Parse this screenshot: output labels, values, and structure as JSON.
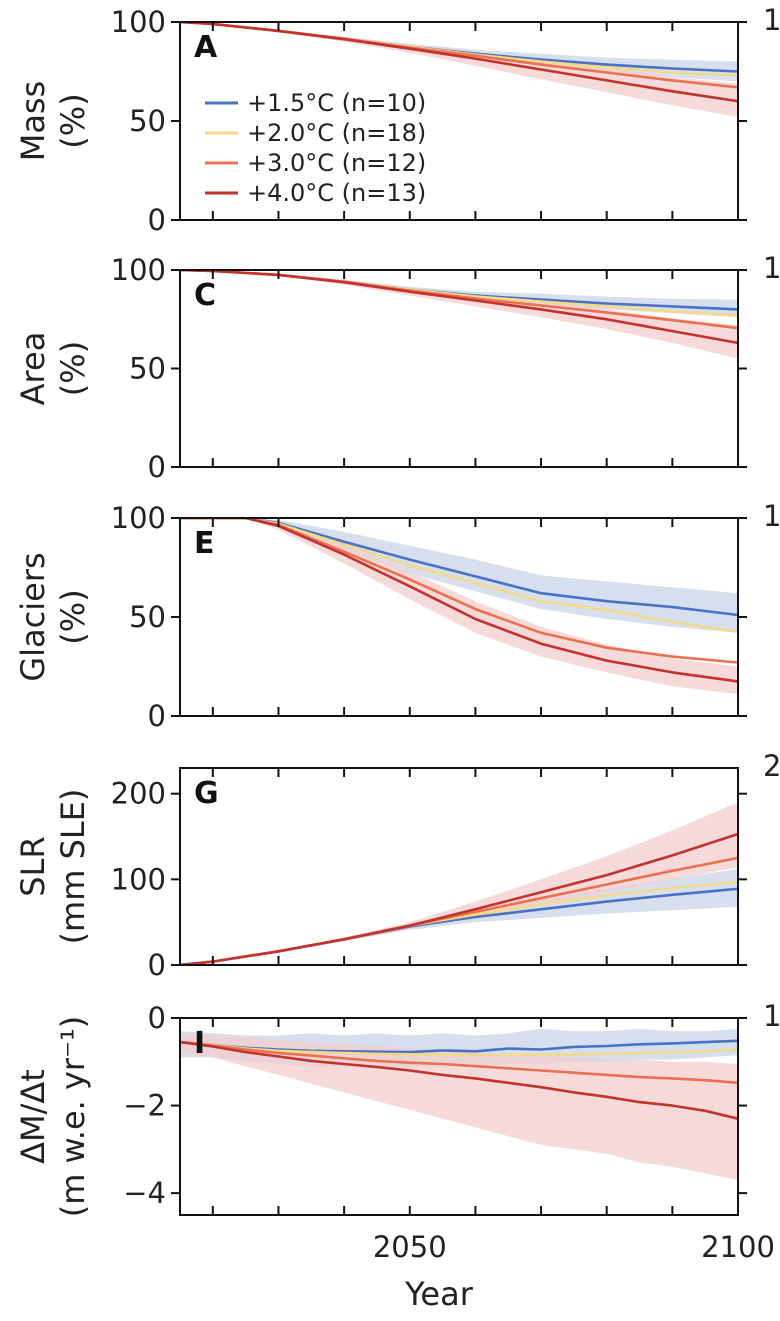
{
  "chart_data": [
    {
      "panel": "A",
      "type": "line",
      "ylabel_lines": [
        "Mass",
        "(%)"
      ],
      "xlim": [
        2015,
        2100
      ],
      "ylim": [
        0,
        100
      ],
      "yticks": [
        0,
        50,
        100
      ],
      "x": [
        2015,
        2020,
        2030,
        2040,
        2050,
        2060,
        2070,
        2080,
        2090,
        2100
      ],
      "series": [
        {
          "name": "+1.5°C (n=10)",
          "values": [
            100,
            99,
            95.5,
            91.5,
            87.5,
            84,
            81,
            78.5,
            76.5,
            75
          ],
          "band": [
            [
              100,
              100
            ],
            [
              99,
              99
            ],
            [
              96,
              95
            ],
            [
              92.5,
              90.5
            ],
            [
              89,
              86
            ],
            [
              86,
              82
            ],
            [
              84,
              78
            ],
            [
              82,
              75
            ],
            [
              81,
              72
            ],
            [
              80,
              70
            ]
          ]
        },
        {
          "name": "+2.0°C (n=18)",
          "values": [
            100,
            99,
            95.5,
            91.5,
            87.5,
            83.5,
            80,
            77,
            74.5,
            73
          ]
        },
        {
          "name": "+3.0°C (n=12)",
          "values": [
            100,
            99,
            95.5,
            91.5,
            87,
            83,
            78.5,
            74.5,
            70.5,
            67
          ]
        },
        {
          "name": "+4.0°C (n=13)",
          "values": [
            100,
            99,
            95.5,
            91.3,
            86.5,
            81.5,
            76,
            70.5,
            65,
            60
          ],
          "band": [
            [
              100,
              100
            ],
            [
              99,
              99
            ],
            [
              96,
              95
            ],
            [
              92.5,
              90
            ],
            [
              88.5,
              84.5
            ],
            [
              85,
              78
            ],
            [
              81,
              71
            ],
            [
              77,
              64.5
            ],
            [
              72,
              58
            ],
            [
              69,
              52
            ]
          ]
        }
      ]
    },
    {
      "panel": "C",
      "type": "line",
      "ylabel_lines": [
        "Area",
        "(%)"
      ],
      "xlim": [
        2015,
        2100
      ],
      "ylim": [
        0,
        100
      ],
      "yticks": [
        0,
        50,
        100
      ],
      "x": [
        2015,
        2020,
        2030,
        2040,
        2050,
        2060,
        2070,
        2080,
        2090,
        2100
      ],
      "series": [
        {
          "name": "+1.5°C (n=10)",
          "values": [
            100,
            99.5,
            97.5,
            94,
            90,
            87,
            85,
            83,
            81.5,
            80
          ],
          "band": [
            [
              100,
              100
            ],
            [
              99.5,
              99.5
            ],
            [
              98,
              97
            ],
            [
              95,
              93
            ],
            [
              91.5,
              88.5
            ],
            [
              89,
              85
            ],
            [
              88,
              82.5
            ],
            [
              86.5,
              80
            ],
            [
              85.5,
              78
            ],
            [
              85,
              76
            ]
          ]
        },
        {
          "name": "+2.0°C (n=18)",
          "values": [
            100,
            99.5,
            97.5,
            94,
            90,
            86.5,
            84,
            81.5,
            79,
            77
          ]
        },
        {
          "name": "+3.0°C (n=12)",
          "values": [
            100,
            99.5,
            97.5,
            94,
            89.5,
            85.5,
            82,
            78.5,
            74.5,
            70.5
          ]
        },
        {
          "name": "+4.0°C (n=13)",
          "values": [
            100,
            99.5,
            97.5,
            93.8,
            89,
            84.5,
            80,
            75,
            69,
            63
          ],
          "band": [
            [
              100,
              100
            ],
            [
              99.5,
              99.5
            ],
            [
              98,
              97
            ],
            [
              95,
              92.5
            ],
            [
              91,
              87
            ],
            [
              87.5,
              81.5
            ],
            [
              84,
              76
            ],
            [
              80,
              70
            ],
            [
              75.5,
              63
            ],
            [
              72,
              55
            ]
          ]
        }
      ]
    },
    {
      "panel": "E",
      "type": "line",
      "ylabel_lines": [
        "Glaciers",
        "(%)"
      ],
      "xlim": [
        2015,
        2100
      ],
      "ylim": [
        0,
        100
      ],
      "yticks": [
        0,
        50,
        100
      ],
      "x": [
        2015,
        2020,
        2025,
        2030,
        2040,
        2050,
        2060,
        2070,
        2080,
        2090,
        2100
      ],
      "series": [
        {
          "name": "+1.5°C (n=10)",
          "values": [
            100,
            100,
            100,
            97.5,
            88,
            79,
            70.5,
            62,
            58,
            55,
            51
          ],
          "band": [
            [
              100,
              100
            ],
            [
              100,
              100
            ],
            [
              100,
              100
            ],
            [
              99,
              96
            ],
            [
              93,
              84
            ],
            [
              86,
              72
            ],
            [
              79,
              63
            ],
            [
              71,
              54
            ],
            [
              68,
              49
            ],
            [
              65,
              45
            ],
            [
              62,
              42
            ]
          ]
        },
        {
          "name": "+2.0°C (n=18)",
          "values": [
            100,
            100,
            100,
            97,
            86.5,
            76,
            67,
            58,
            53.5,
            47.5,
            42.5
          ]
        },
        {
          "name": "+3.0°C (n=12)",
          "values": [
            100,
            100,
            100,
            96.5,
            83,
            69,
            54,
            42,
            34.5,
            30,
            27
          ]
        },
        {
          "name": "+4.0°C (n=13)",
          "values": [
            100,
            100,
            100,
            96,
            81.5,
            65.5,
            49,
            36.5,
            28,
            22,
            17.5
          ],
          "band": [
            [
              100,
              100
            ],
            [
              100,
              100
            ],
            [
              100,
              100
            ],
            [
              98,
              94
            ],
            [
              86,
              77
            ],
            [
              73,
              59
            ],
            [
              58,
              42
            ],
            [
              45,
              30
            ],
            [
              36,
              22
            ],
            [
              29,
              15
            ],
            [
              25,
              11
            ]
          ]
        }
      ]
    },
    {
      "panel": "G",
      "type": "line",
      "ylabel_lines": [
        "SLR",
        "(mm SLE)"
      ],
      "xlim": [
        2015,
        2100
      ],
      "ylim": [
        0,
        230
      ],
      "yticks": [
        0,
        100,
        200
      ],
      "x": [
        2015,
        2020,
        2030,
        2040,
        2050,
        2060,
        2070,
        2080,
        2090,
        2100
      ],
      "series": [
        {
          "name": "+1.5°C (n=10)",
          "values": [
            0,
            4,
            16,
            30,
            45,
            56,
            65,
            74,
            82,
            89
          ],
          "band": [
            [
              0,
              0
            ],
            [
              4,
              4
            ],
            [
              17,
              15
            ],
            [
              32,
              28
            ],
            [
              49,
              41
            ],
            [
              63,
              50
            ],
            [
              76,
              55
            ],
            [
              89,
              60
            ],
            [
              101,
              64
            ],
            [
              112,
              68
            ]
          ]
        },
        {
          "name": "+2.0°C (n=18)",
          "values": [
            0,
            4,
            16,
            30,
            46,
            59,
            71,
            81,
            90,
            97
          ]
        },
        {
          "name": "+3.0°C (n=12)",
          "values": [
            0,
            4,
            16,
            30,
            46,
            62,
            78,
            94,
            110,
            125
          ]
        },
        {
          "name": "+4.0°C (n=13)",
          "values": [
            0,
            4,
            16,
            30,
            46,
            65,
            85,
            105,
            128,
            153
          ],
          "band": [
            [
              0,
              0
            ],
            [
              4,
              4
            ],
            [
              17,
              15
            ],
            [
              32,
              28
            ],
            [
              50,
              42
            ],
            [
              74,
              56
            ],
            [
              100,
              70
            ],
            [
              127,
              85
            ],
            [
              157,
              100
            ],
            [
              190,
              114
            ]
          ]
        }
      ]
    },
    {
      "panel": "I",
      "type": "line",
      "ylabel_lines": [
        "ΔM/Δt",
        "(m w.e. yr⁻¹)"
      ],
      "xlim": [
        2015,
        2100
      ],
      "ylim": [
        -4.5,
        0
      ],
      "yticks": [
        -4,
        -2,
        0
      ],
      "x": [
        2015,
        2020,
        2025,
        2030,
        2035,
        2040,
        2045,
        2050,
        2055,
        2060,
        2065,
        2070,
        2075,
        2080,
        2085,
        2090,
        2095,
        2100
      ],
      "series": [
        {
          "name": "+1.5°C (n=10)",
          "values": [
            -0.55,
            -0.62,
            -0.68,
            -0.72,
            -0.75,
            -0.76,
            -0.77,
            -0.78,
            -0.74,
            -0.76,
            -0.7,
            -0.72,
            -0.66,
            -0.64,
            -0.6,
            -0.58,
            -0.55,
            -0.52
          ],
          "band": [
            [
              -0.3,
              -0.9
            ],
            [
              -0.35,
              -0.9
            ],
            [
              -0.4,
              -1.0
            ],
            [
              -0.4,
              -1.05
            ],
            [
              -0.35,
              -1.1
            ],
            [
              -0.4,
              -1.1
            ],
            [
              -0.35,
              -1.15
            ],
            [
              -0.4,
              -1.1
            ],
            [
              -0.35,
              -1.1
            ],
            [
              -0.4,
              -1.1
            ],
            [
              -0.35,
              -1.05
            ],
            [
              -0.25,
              -1.05
            ],
            [
              -0.3,
              -1.0
            ],
            [
              -0.3,
              -1.0
            ],
            [
              -0.25,
              -0.95
            ],
            [
              -0.3,
              -0.95
            ],
            [
              -0.3,
              -0.9
            ],
            [
              -0.25,
              -0.85
            ]
          ]
        },
        {
          "name": "+2.0°C (n=18)",
          "values": [
            -0.55,
            -0.62,
            -0.7,
            -0.75,
            -0.78,
            -0.8,
            -0.82,
            -0.83,
            -0.84,
            -0.85,
            -0.84,
            -0.84,
            -0.83,
            -0.82,
            -0.8,
            -0.78,
            -0.76,
            -0.72
          ]
        },
        {
          "name": "+3.0°C (n=12)",
          "values": [
            -0.55,
            -0.63,
            -0.72,
            -0.8,
            -0.86,
            -0.92,
            -0.98,
            -1.02,
            -1.05,
            -1.1,
            -1.15,
            -1.2,
            -1.25,
            -1.3,
            -1.35,
            -1.38,
            -1.42,
            -1.48
          ]
        },
        {
          "name": "+4.0°C (n=13)",
          "values": [
            -0.55,
            -0.65,
            -0.78,
            -0.88,
            -0.98,
            -1.05,
            -1.12,
            -1.2,
            -1.3,
            -1.38,
            -1.48,
            -1.58,
            -1.7,
            -1.8,
            -1.92,
            -2.0,
            -2.12,
            -2.3
          ],
          "band": [
            [
              -0.35,
              -0.8
            ],
            [
              -0.4,
              -0.9
            ],
            [
              -0.45,
              -1.1
            ],
            [
              -0.5,
              -1.3
            ],
            [
              -0.55,
              -1.5
            ],
            [
              -0.6,
              -1.7
            ],
            [
              -0.65,
              -1.9
            ],
            [
              -0.7,
              -2.1
            ],
            [
              -0.75,
              -2.3
            ],
            [
              -0.8,
              -2.5
            ],
            [
              -0.85,
              -2.7
            ],
            [
              -0.85,
              -2.9
            ],
            [
              -0.9,
              -3.0
            ],
            [
              -0.95,
              -3.1
            ],
            [
              -0.95,
              -3.3
            ],
            [
              -1.0,
              -3.4
            ],
            [
              -1.0,
              -3.55
            ],
            [
              -1.05,
              -3.7
            ]
          ]
        }
      ]
    }
  ],
  "x_axis": {
    "xlabel": "Year",
    "tick_values": [
      2050,
      2100
    ],
    "tick_labels": [
      "2050",
      "2100"
    ],
    "minor_ticks": [
      2020,
      2030,
      2040,
      2060,
      2070,
      2080,
      2090
    ]
  },
  "legend": {
    "placement": "inside panel A, left",
    "entries": [
      "+1.5°C (n=10)",
      "+2.0°C (n=18)",
      "+3.0°C (n=12)",
      "+4.0°C (n=13)"
    ]
  },
  "colors": {
    "s15": "#4a72c4",
    "s20": "#f3d98a",
    "s30": "#ea7150",
    "s40": "#c3322c",
    "band15": "#c9d4ea",
    "band40": "#f3cccc",
    "axis": "#111111"
  },
  "cut_off_right_ticks": [
    "1",
    "1",
    "1",
    "2",
    "1"
  ]
}
